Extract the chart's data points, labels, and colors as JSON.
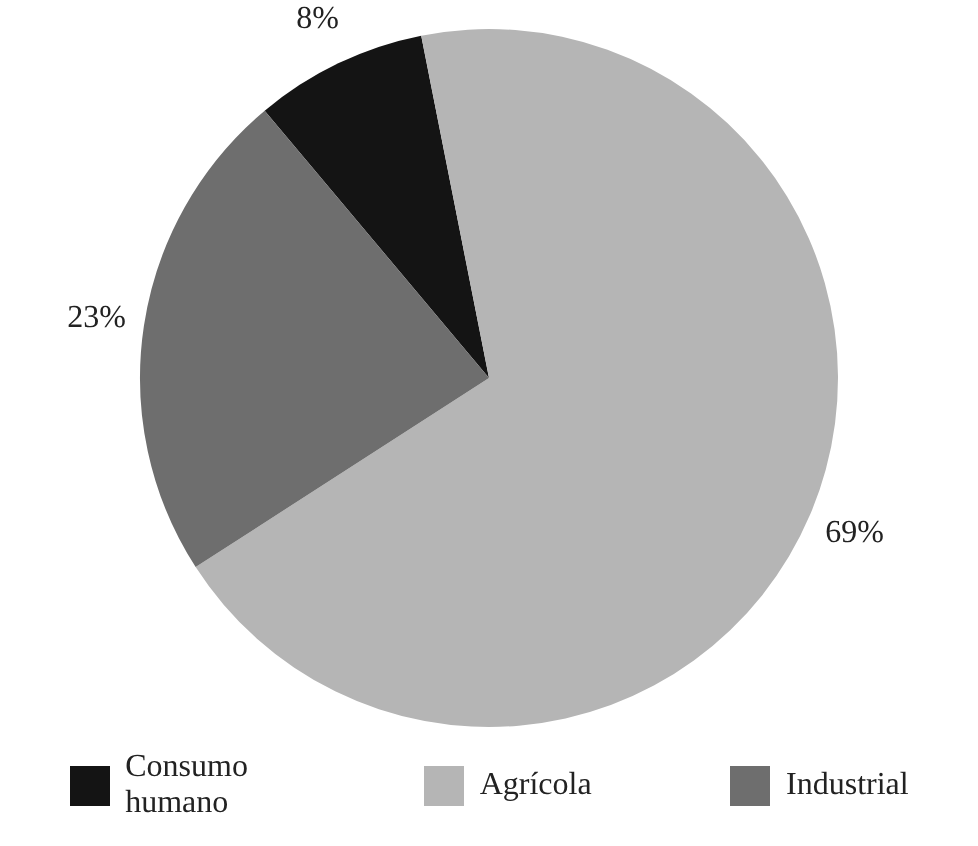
{
  "chart_data": {
    "type": "pie",
    "categories": [
      "Consumo humano",
      "Agrícola",
      "Industrial"
    ],
    "values": [
      8,
      69,
      23
    ],
    "colors": [
      "#141414",
      "#b5b5b5",
      "#6e6e6e"
    ],
    "value_labels": [
      "8%",
      "69%",
      "23%"
    ],
    "legend": "bottom"
  }
}
